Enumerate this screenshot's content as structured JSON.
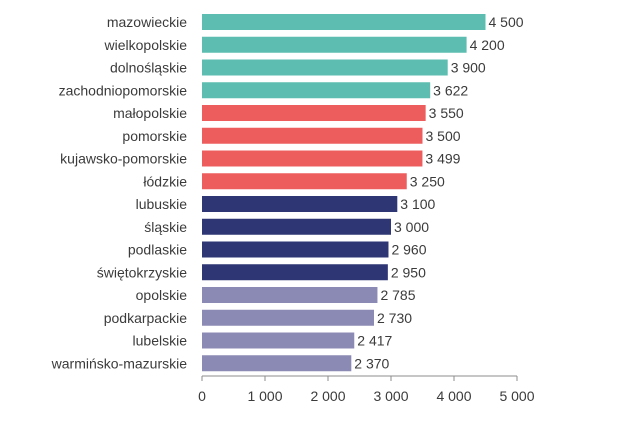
{
  "chart_data": {
    "type": "bar",
    "orientation": "horizontal",
    "categories": [
      "mazowieckie",
      "wielkopolskie",
      "dolnośląskie",
      "zachodniopomorskie",
      "małopolskie",
      "pomorskie",
      "kujawsko-pomorskie",
      "łódzkie",
      "lubuskie",
      "śląskie",
      "podlaskie",
      "świętokrzyskie",
      "opolskie",
      "podkarpackie",
      "lubelskie",
      "warmińsko-mazurskie"
    ],
    "values": [
      4500,
      4200,
      3900,
      3622,
      3550,
      3500,
      3499,
      3250,
      3100,
      3000,
      2960,
      2950,
      2785,
      2730,
      2417,
      2370
    ],
    "value_labels": [
      "4 500",
      "4 200",
      "3 900",
      "3 622",
      "3 550",
      "3 500",
      "3 499",
      "3 250",
      "3 100",
      "3 000",
      "2 960",
      "2 950",
      "2 785",
      "2 730",
      "2 417",
      "2 370"
    ],
    "groups": [
      0,
      0,
      0,
      0,
      1,
      1,
      1,
      1,
      2,
      2,
      2,
      2,
      3,
      3,
      3,
      3
    ],
    "group_colors": [
      "#5dbdb0",
      "#ee5d5d",
      "#2e3674",
      "#8b8ab4"
    ],
    "xlim": [
      0,
      5000
    ],
    "x_ticks": [
      0,
      1000,
      2000,
      3000,
      4000,
      5000
    ],
    "x_tick_labels": [
      "0",
      "1 000",
      "2 000",
      "3 000",
      "4 000",
      "5 000"
    ],
    "title": "",
    "xlabel": "",
    "ylabel": "",
    "grid": false,
    "legend": "none"
  }
}
